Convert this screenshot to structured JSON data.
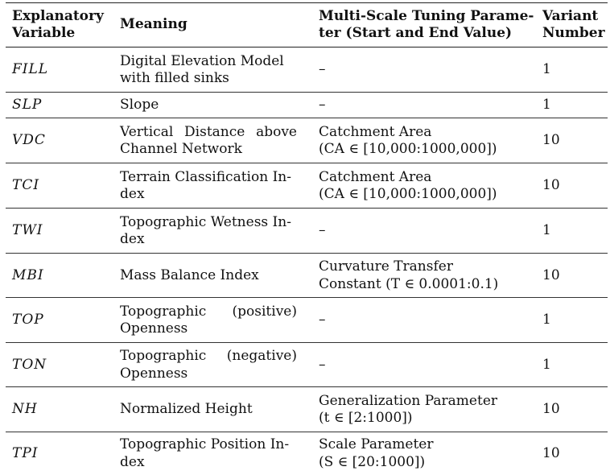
{
  "headers": {
    "variable": [
      "Explanatory",
      "Variable"
    ],
    "meaning": "Meaning",
    "tuning": [
      "Multi-Scale Tuning Parame-",
      "ter (Start and End Value)"
    ],
    "variant": [
      "Variant",
      "Number"
    ]
  },
  "rows": [
    {
      "var": "FILL",
      "meaning": [
        "Digital Elevation Model",
        "with filled sinks"
      ],
      "param": [
        "–"
      ],
      "variant": "1"
    },
    {
      "var": "SLP",
      "meaning": [
        "Slope"
      ],
      "param": [
        "–"
      ],
      "variant": "1"
    },
    {
      "var": "VDC",
      "meaning": [
        "Vertical Distance above",
        "Channel Network"
      ],
      "param": [
        "Catchment Area",
        "(CA ∈ [10,000:1000,000])"
      ],
      "variant": "10"
    },
    {
      "var": "TCI",
      "meaning": [
        "Terrain Classification In-",
        "dex"
      ],
      "param": [
        "Catchment Area",
        "(CA ∈ [10,000:1000,000])"
      ],
      "variant": "10"
    },
    {
      "var": "TWI",
      "meaning": [
        "Topographic Wetness In-",
        "dex"
      ],
      "param": [
        "–"
      ],
      "variant": "1"
    },
    {
      "var": "MBI",
      "meaning": [
        "Mass Balance Index"
      ],
      "param": [
        "Curvature Transfer",
        "Constant (T ∈ 0.0001:0.1)"
      ],
      "variant": "10"
    },
    {
      "var": "TOP",
      "meaning": [
        "Topographic (positive)",
        "Openness"
      ],
      "param": [
        "–"
      ],
      "variant": "1"
    },
    {
      "var": "TON",
      "meaning": [
        "Topographic (negative)",
        "Openness"
      ],
      "param": [
        "–"
      ],
      "variant": "1"
    },
    {
      "var": "NH",
      "meaning": [
        "Normalized Height"
      ],
      "param": [
        "Generalization Parameter",
        "(t ∈ [2:1000])"
      ],
      "variant": "10"
    },
    {
      "var": "TPI",
      "meaning": [
        "Topographic Position In-",
        "dex"
      ],
      "param": [
        "Scale Parameter",
        "(S ∈ [20:1000])"
      ],
      "variant": "10"
    }
  ]
}
